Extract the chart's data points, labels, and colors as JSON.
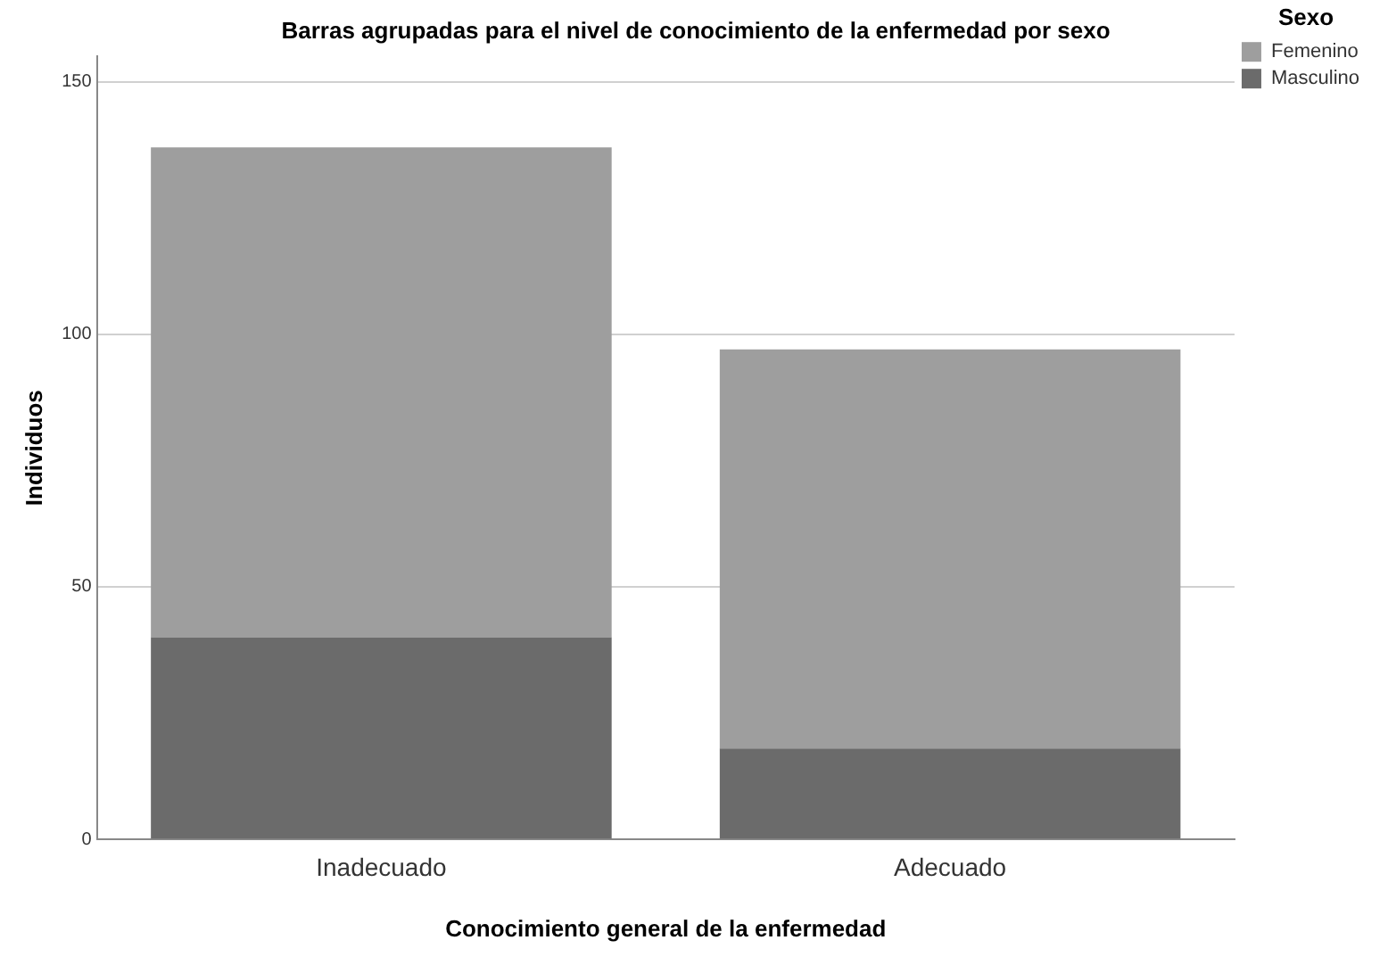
{
  "chart_data": {
    "type": "bar",
    "title": "Barras agrupadas para el nivel de conocimiento de la enfermedad por sexo",
    "xlabel": "Conocimiento general de la enfermedad",
    "ylabel": "Individuos",
    "legend_title": "Sexo",
    "categories": [
      "Inadecuado",
      "Adecuado"
    ],
    "stacked": true,
    "series": [
      {
        "name": "Masculino",
        "color": "#6b6b6b",
        "values": [
          40,
          18
        ]
      },
      {
        "name": "Femenino",
        "color": "#9e9e9e",
        "values": [
          97,
          79
        ]
      }
    ],
    "ylim": [
      0,
      155
    ],
    "yticks": [
      0,
      50,
      100,
      150
    ],
    "grid": "y",
    "legend": "top right"
  }
}
